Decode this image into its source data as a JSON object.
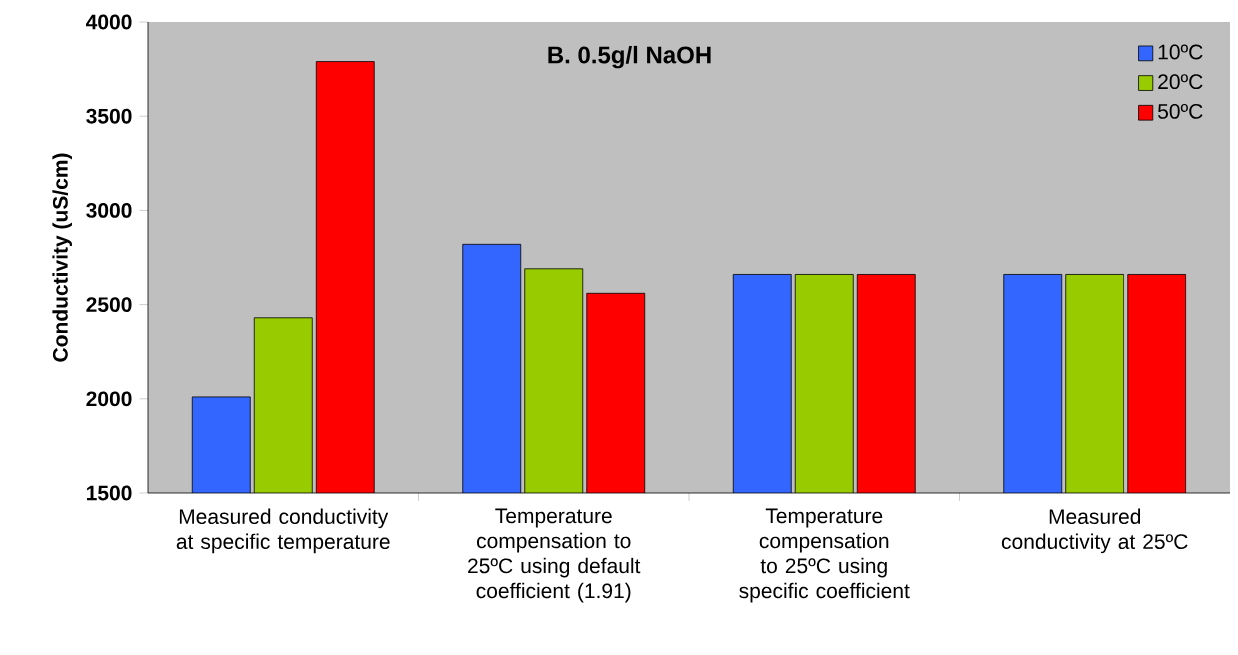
{
  "chart_data": {
    "type": "bar",
    "title": "B. 0.5g/l NaOH",
    "ylabel": "Conductivity (uS/cm)",
    "categories": [
      "Measured conductivity at specific temperature",
      "Temperature compensation to 25ºC using default coefficient (1.91)",
      "Temperature compensation to 25ºC using specific coefficient",
      "Measured conductivity at 25ºC"
    ],
    "series": [
      {
        "name": "10ºC",
        "color": "#3366ff",
        "values": [
          2010,
          2820,
          2660,
          2660
        ]
      },
      {
        "name": "20ºC",
        "color": "#99cc00",
        "values": [
          2430,
          2690,
          2660,
          2660
        ]
      },
      {
        "name": "50ºC",
        "color": "#ff0000",
        "values": [
          3790,
          2560,
          2660,
          2660
        ]
      }
    ],
    "ylim": [
      1500,
      4000
    ],
    "yticks": [
      1500,
      2000,
      2500,
      3000,
      3500,
      4000
    ],
    "legend": "top right",
    "grid": false
  }
}
